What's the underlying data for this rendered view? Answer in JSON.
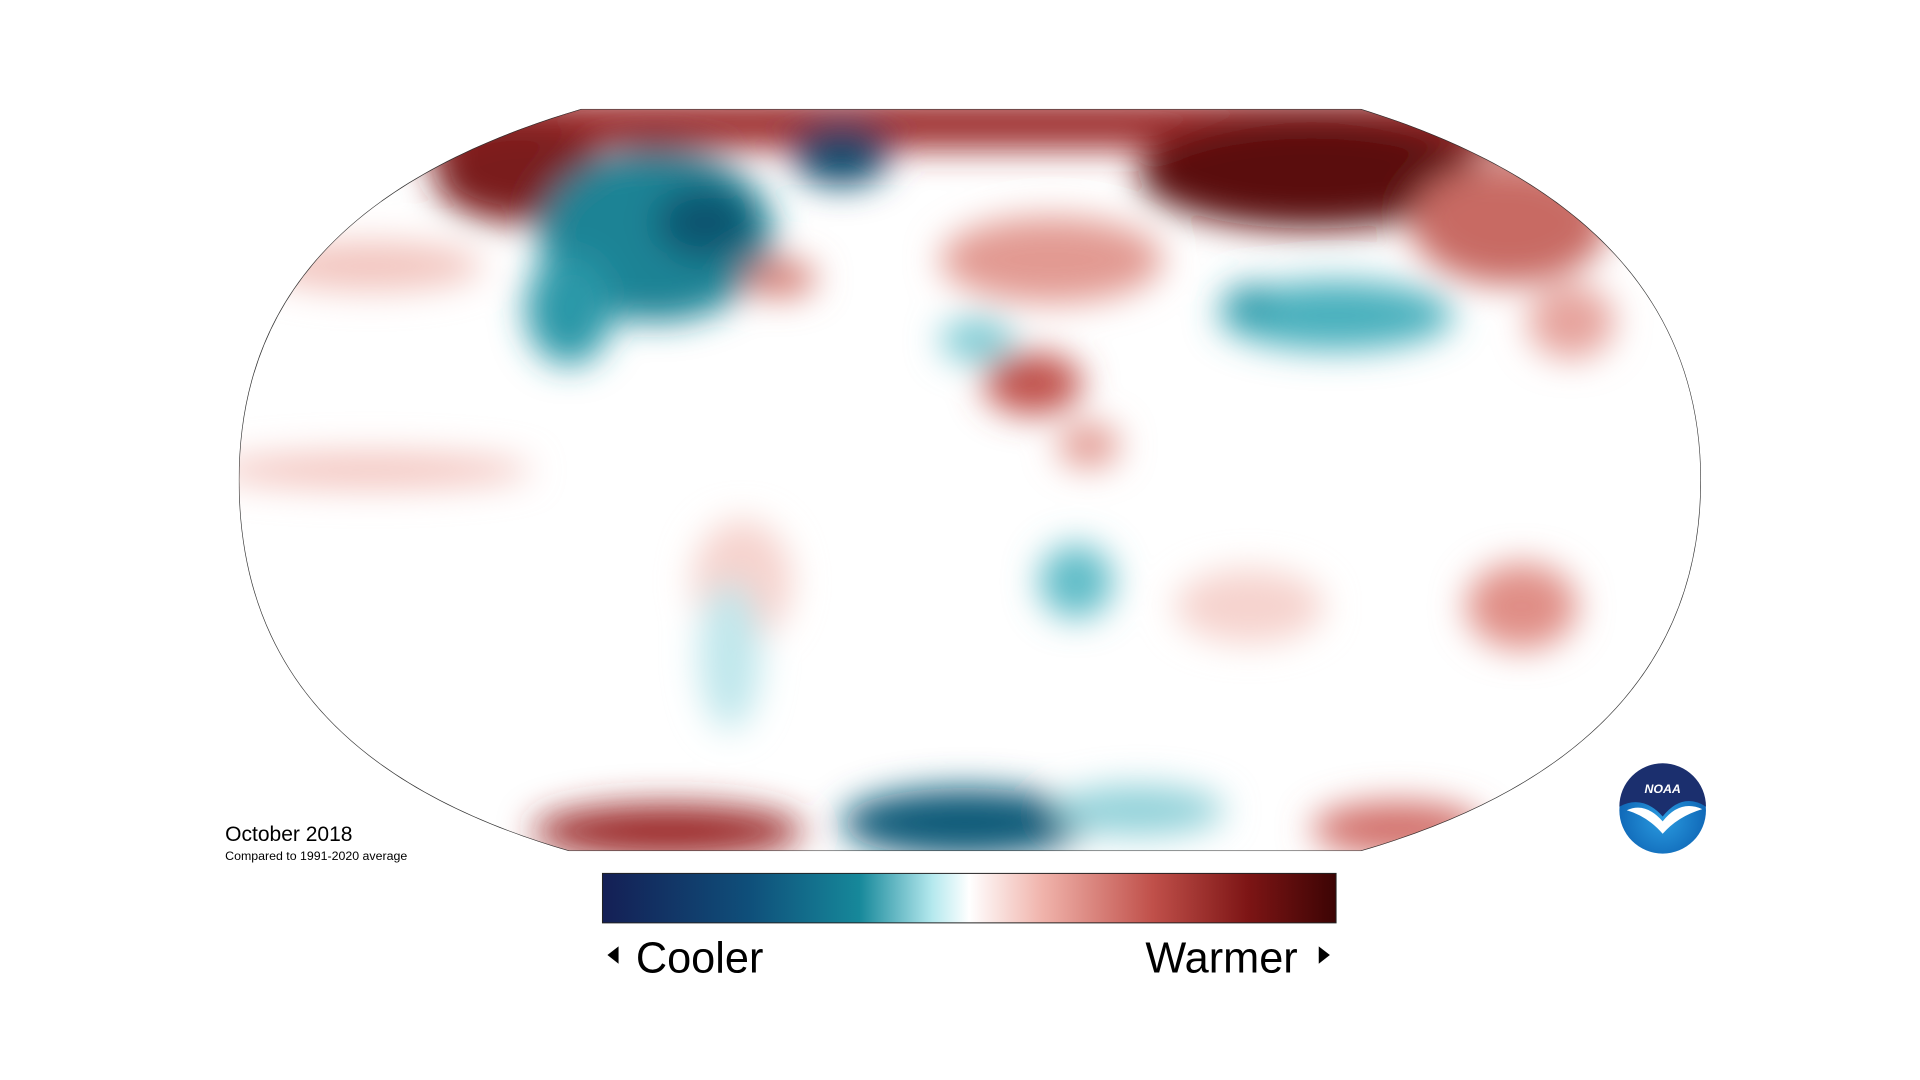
{
  "map": {
    "title": "October 2018",
    "subtitle": "Compared to 1991-2020 average"
  },
  "legend": {
    "low_label": "Cooler",
    "high_label": "Warmer"
  },
  "logo": {
    "text": "NOAA"
  }
}
